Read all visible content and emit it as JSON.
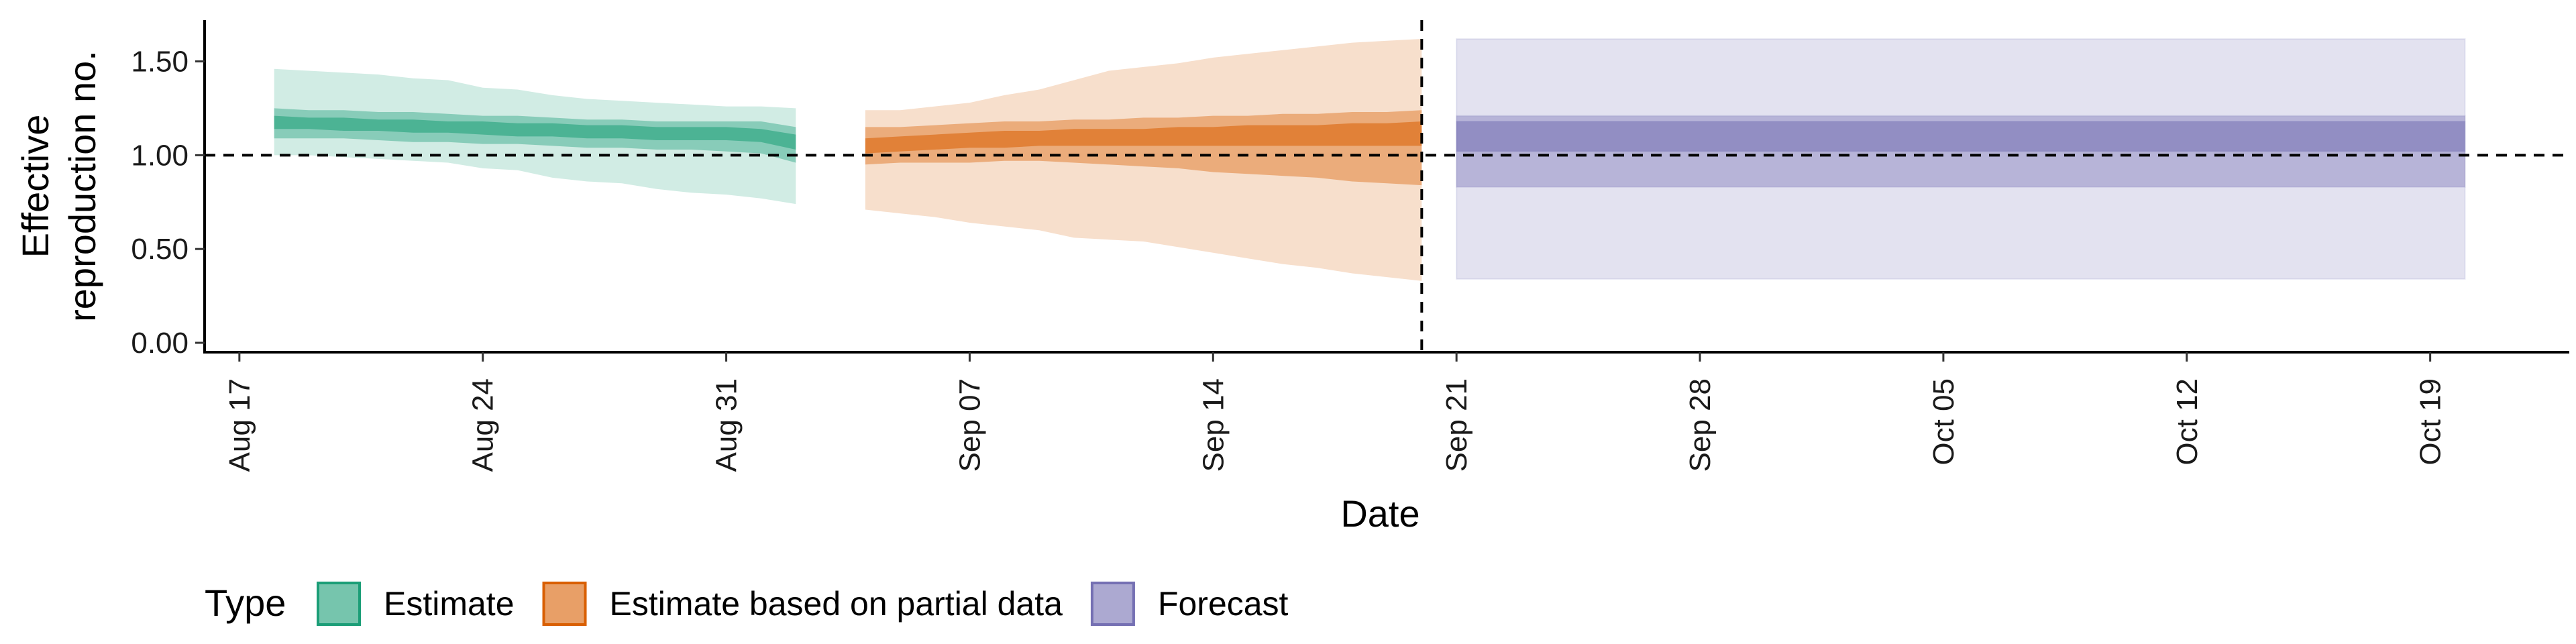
{
  "chart_data": {
    "type": "area",
    "title": "",
    "xlabel": "Date",
    "ylabel_lines": [
      "Effective",
      "reproduction no."
    ],
    "ylim": [
      -0.05,
      1.72
    ],
    "xlim": [
      "2021-08-16",
      "2021-10-23"
    ],
    "y_ticks": [
      0.0,
      0.5,
      1.0,
      1.5
    ],
    "y_tick_labels": [
      "0.00",
      "0.50",
      "1.00",
      "1.50"
    ],
    "x_ticks": [
      "2021-08-17",
      "2021-08-24",
      "2021-08-31",
      "2021-09-07",
      "2021-09-14",
      "2021-09-21",
      "2021-09-28",
      "2021-10-05",
      "2021-10-12",
      "2021-10-19"
    ],
    "x_tick_labels": [
      "Aug 17",
      "Aug 24",
      "Aug 31",
      "Sep 07",
      "Sep 14",
      "Sep 21",
      "Sep 28",
      "Oct 05",
      "Oct 12",
      "Oct 19"
    ],
    "reference_hline": 1.0,
    "reference_vline": "2021-09-20",
    "legend": {
      "title": "Type",
      "position": "bottom",
      "items": [
        {
          "label": "Estimate",
          "fill": "#1b9e77",
          "stroke": "#1b9e77"
        },
        {
          "label": "Estimate based on partial data",
          "fill": "#d95f02",
          "stroke": "#d95f02"
        },
        {
          "label": "Forecast",
          "fill": "#7570b3",
          "stroke": "#7570b3"
        }
      ]
    },
    "series": [
      {
        "name": "Estimate",
        "color": "#1b9e77",
        "points": [
          {
            "date": "2021-08-18",
            "lo90": 1.0,
            "hi90": 1.46,
            "lo50": 1.09,
            "hi50": 1.25,
            "lo20": 1.14,
            "hi20": 1.21
          },
          {
            "date": "2021-08-19",
            "lo90": 1.0,
            "hi90": 1.45,
            "lo50": 1.09,
            "hi50": 1.24,
            "lo20": 1.14,
            "hi20": 1.2
          },
          {
            "date": "2021-08-20",
            "lo90": 0.99,
            "hi90": 1.44,
            "lo50": 1.09,
            "hi50": 1.24,
            "lo20": 1.13,
            "hi20": 1.2
          },
          {
            "date": "2021-08-21",
            "lo90": 0.98,
            "hi90": 1.43,
            "lo50": 1.08,
            "hi50": 1.23,
            "lo20": 1.13,
            "hi20": 1.19
          },
          {
            "date": "2021-08-22",
            "lo90": 0.97,
            "hi90": 1.41,
            "lo50": 1.07,
            "hi50": 1.23,
            "lo20": 1.12,
            "hi20": 1.19
          },
          {
            "date": "2021-08-23",
            "lo90": 0.96,
            "hi90": 1.4,
            "lo50": 1.07,
            "hi50": 1.22,
            "lo20": 1.12,
            "hi20": 1.18
          },
          {
            "date": "2021-08-24",
            "lo90": 0.93,
            "hi90": 1.36,
            "lo50": 1.06,
            "hi50": 1.21,
            "lo20": 1.11,
            "hi20": 1.18
          },
          {
            "date": "2021-08-25",
            "lo90": 0.92,
            "hi90": 1.35,
            "lo50": 1.06,
            "hi50": 1.21,
            "lo20": 1.1,
            "hi20": 1.17
          },
          {
            "date": "2021-08-26",
            "lo90": 0.88,
            "hi90": 1.32,
            "lo50": 1.05,
            "hi50": 1.2,
            "lo20": 1.1,
            "hi20": 1.17
          },
          {
            "date": "2021-08-27",
            "lo90": 0.86,
            "hi90": 1.3,
            "lo50": 1.04,
            "hi50": 1.19,
            "lo20": 1.09,
            "hi20": 1.16
          },
          {
            "date": "2021-08-28",
            "lo90": 0.85,
            "hi90": 1.29,
            "lo50": 1.04,
            "hi50": 1.19,
            "lo20": 1.09,
            "hi20": 1.16
          },
          {
            "date": "2021-08-29",
            "lo90": 0.82,
            "hi90": 1.28,
            "lo50": 1.03,
            "hi50": 1.18,
            "lo20": 1.08,
            "hi20": 1.15
          },
          {
            "date": "2021-08-30",
            "lo90": 0.8,
            "hi90": 1.27,
            "lo50": 1.03,
            "hi50": 1.18,
            "lo20": 1.08,
            "hi20": 1.15
          },
          {
            "date": "2021-08-31",
            "lo90": 0.79,
            "hi90": 1.26,
            "lo50": 1.02,
            "hi50": 1.18,
            "lo20": 1.08,
            "hi20": 1.15
          },
          {
            "date": "2021-09-01",
            "lo90": 0.77,
            "hi90": 1.26,
            "lo50": 1.01,
            "hi50": 1.18,
            "lo20": 1.07,
            "hi20": 1.14
          },
          {
            "date": "2021-09-02",
            "lo90": 0.74,
            "hi90": 1.25,
            "lo50": 0.96,
            "hi50": 1.15,
            "lo20": 1.03,
            "hi20": 1.11
          }
        ]
      },
      {
        "name": "Estimate based on partial data",
        "color": "#d95f02",
        "points": [
          {
            "date": "2021-09-04",
            "lo90": 0.71,
            "hi90": 1.24,
            "lo50": 0.95,
            "hi50": 1.15,
            "lo20": 1.01,
            "hi20": 1.09
          },
          {
            "date": "2021-09-05",
            "lo90": 0.69,
            "hi90": 1.24,
            "lo50": 0.96,
            "hi50": 1.15,
            "lo20": 1.02,
            "hi20": 1.1
          },
          {
            "date": "2021-09-06",
            "lo90": 0.67,
            "hi90": 1.26,
            "lo50": 0.96,
            "hi50": 1.16,
            "lo20": 1.03,
            "hi20": 1.11
          },
          {
            "date": "2021-09-07",
            "lo90": 0.64,
            "hi90": 1.28,
            "lo50": 0.96,
            "hi50": 1.17,
            "lo20": 1.04,
            "hi20": 1.12
          },
          {
            "date": "2021-09-08",
            "lo90": 0.62,
            "hi90": 1.32,
            "lo50": 0.97,
            "hi50": 1.18,
            "lo20": 1.04,
            "hi20": 1.13
          },
          {
            "date": "2021-09-09",
            "lo90": 0.6,
            "hi90": 1.35,
            "lo50": 0.97,
            "hi50": 1.18,
            "lo20": 1.05,
            "hi20": 1.13
          },
          {
            "date": "2021-09-10",
            "lo90": 0.56,
            "hi90": 1.4,
            "lo50": 0.96,
            "hi50": 1.19,
            "lo20": 1.05,
            "hi20": 1.14
          },
          {
            "date": "2021-09-11",
            "lo90": 0.55,
            "hi90": 1.45,
            "lo50": 0.95,
            "hi50": 1.19,
            "lo20": 1.05,
            "hi20": 1.14
          },
          {
            "date": "2021-09-12",
            "lo90": 0.54,
            "hi90": 1.47,
            "lo50": 0.94,
            "hi50": 1.2,
            "lo20": 1.05,
            "hi20": 1.14
          },
          {
            "date": "2021-09-13",
            "lo90": 0.51,
            "hi90": 1.49,
            "lo50": 0.93,
            "hi50": 1.2,
            "lo20": 1.05,
            "hi20": 1.15
          },
          {
            "date": "2021-09-14",
            "lo90": 0.48,
            "hi90": 1.52,
            "lo50": 0.91,
            "hi50": 1.21,
            "lo20": 1.05,
            "hi20": 1.15
          },
          {
            "date": "2021-09-15",
            "lo90": 0.45,
            "hi90": 1.54,
            "lo50": 0.9,
            "hi50": 1.21,
            "lo20": 1.05,
            "hi20": 1.16
          },
          {
            "date": "2021-09-16",
            "lo90": 0.42,
            "hi90": 1.56,
            "lo50": 0.89,
            "hi50": 1.22,
            "lo20": 1.05,
            "hi20": 1.16
          },
          {
            "date": "2021-09-17",
            "lo90": 0.4,
            "hi90": 1.58,
            "lo50": 0.88,
            "hi50": 1.22,
            "lo20": 1.05,
            "hi20": 1.16
          },
          {
            "date": "2021-09-18",
            "lo90": 0.37,
            "hi90": 1.6,
            "lo50": 0.86,
            "hi50": 1.23,
            "lo20": 1.05,
            "hi20": 1.17
          },
          {
            "date": "2021-09-19",
            "lo90": 0.35,
            "hi90": 1.61,
            "lo50": 0.85,
            "hi50": 1.23,
            "lo20": 1.05,
            "hi20": 1.17
          },
          {
            "date": "2021-09-20",
            "lo90": 0.33,
            "hi90": 1.62,
            "lo50": 0.84,
            "hi50": 1.24,
            "lo20": 1.05,
            "hi20": 1.18
          }
        ]
      },
      {
        "name": "Forecast",
        "color": "#7570b3",
        "points": [
          {
            "date": "2021-09-21",
            "lo90": 0.34,
            "hi90": 1.62,
            "lo50": 0.83,
            "hi50": 1.21,
            "lo20": 1.02,
            "hi20": 1.18
          },
          {
            "date": "2021-10-20",
            "lo90": 0.34,
            "hi90": 1.62,
            "lo50": 0.83,
            "hi50": 1.21,
            "lo20": 1.02,
            "hi20": 1.18
          }
        ]
      }
    ]
  }
}
